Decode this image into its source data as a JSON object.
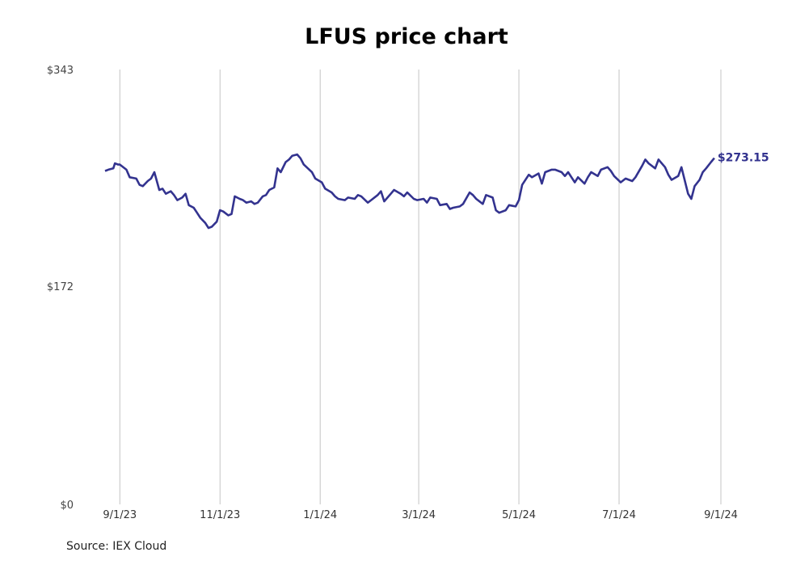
{
  "chart_data": {
    "type": "line",
    "title": "LFUS price chart",
    "source": "Source: IEX Cloud",
    "y_tick_labels": [
      "$343",
      "$172",
      "$0"
    ],
    "y_ticks": [
      343,
      172,
      0
    ],
    "ylim": [
      0,
      343
    ],
    "x_tick_labels": [
      "9/1/23",
      "11/1/23",
      "1/1/24",
      "3/1/24",
      "5/1/24",
      "7/1/24",
      "9/1/24"
    ],
    "x_ticks": [
      "2023-09-01",
      "2023-11-01",
      "2024-01-01",
      "2024-03-01",
      "2024-05-01",
      "2024-07-01",
      "2024-09-01"
    ],
    "xlim": [
      "2023-08-23",
      "2024-09-01"
    ],
    "grid": "vertical",
    "line_color": "#33338f",
    "last_value_label": "$273.15",
    "series": [
      {
        "values": [
          [
            "2023-08-23",
            263
          ],
          [
            "2023-08-25",
            264
          ],
          [
            "2023-08-28",
            265
          ],
          [
            "2023-08-29",
            269
          ],
          [
            "2023-08-31",
            268
          ],
          [
            "2023-09-01",
            268
          ],
          [
            "2023-09-05",
            264
          ],
          [
            "2023-09-07",
            258
          ],
          [
            "2023-09-11",
            257
          ],
          [
            "2023-09-13",
            252
          ],
          [
            "2023-09-15",
            251
          ],
          [
            "2023-09-18",
            255
          ],
          [
            "2023-09-20",
            257
          ],
          [
            "2023-09-22",
            262
          ],
          [
            "2023-09-25",
            248
          ],
          [
            "2023-09-27",
            249
          ],
          [
            "2023-09-29",
            245
          ],
          [
            "2023-10-02",
            247
          ],
          [
            "2023-10-04",
            244
          ],
          [
            "2023-10-06",
            240
          ],
          [
            "2023-10-09",
            242
          ],
          [
            "2023-10-11",
            245
          ],
          [
            "2023-10-13",
            236
          ],
          [
            "2023-10-16",
            234
          ],
          [
            "2023-10-18",
            230
          ],
          [
            "2023-10-20",
            226
          ],
          [
            "2023-10-23",
            222
          ],
          [
            "2023-10-25",
            218
          ],
          [
            "2023-10-27",
            219
          ],
          [
            "2023-10-30",
            223
          ],
          [
            "2023-11-01",
            232
          ],
          [
            "2023-11-03",
            231
          ],
          [
            "2023-11-06",
            228
          ],
          [
            "2023-11-08",
            229
          ],
          [
            "2023-11-10",
            243
          ],
          [
            "2023-11-13",
            241
          ],
          [
            "2023-11-15",
            240
          ],
          [
            "2023-11-17",
            238
          ],
          [
            "2023-11-20",
            239
          ],
          [
            "2023-11-22",
            237
          ],
          [
            "2023-11-24",
            238
          ],
          [
            "2023-11-27",
            243
          ],
          [
            "2023-11-29",
            244
          ],
          [
            "2023-12-01",
            248
          ],
          [
            "2023-12-04",
            250
          ],
          [
            "2023-12-06",
            265
          ],
          [
            "2023-12-08",
            262
          ],
          [
            "2023-12-11",
            270
          ],
          [
            "2023-12-13",
            272
          ],
          [
            "2023-12-15",
            275
          ],
          [
            "2023-12-18",
            276
          ],
          [
            "2023-12-20",
            273
          ],
          [
            "2023-12-22",
            268
          ],
          [
            "2023-12-27",
            262
          ],
          [
            "2023-12-29",
            257
          ],
          [
            "2024-01-02",
            254
          ],
          [
            "2024-01-04",
            249
          ],
          [
            "2024-01-08",
            246
          ],
          [
            "2024-01-10",
            243
          ],
          [
            "2024-01-12",
            241
          ],
          [
            "2024-01-16",
            240
          ],
          [
            "2024-01-18",
            242
          ],
          [
            "2024-01-22",
            241
          ],
          [
            "2024-01-24",
            244
          ],
          [
            "2024-01-26",
            243
          ],
          [
            "2024-01-30",
            238
          ],
          [
            "2024-02-01",
            240
          ],
          [
            "2024-02-05",
            244
          ],
          [
            "2024-02-07",
            247
          ],
          [
            "2024-02-09",
            239
          ],
          [
            "2024-02-13",
            245
          ],
          [
            "2024-02-15",
            248
          ],
          [
            "2024-02-19",
            245
          ],
          [
            "2024-02-21",
            243
          ],
          [
            "2024-02-23",
            246
          ],
          [
            "2024-02-27",
            241
          ],
          [
            "2024-02-29",
            240
          ],
          [
            "2024-03-04",
            241
          ],
          [
            "2024-03-06",
            238
          ],
          [
            "2024-03-08",
            242
          ],
          [
            "2024-03-12",
            241
          ],
          [
            "2024-03-14",
            236
          ],
          [
            "2024-03-18",
            237
          ],
          [
            "2024-03-20",
            233
          ],
          [
            "2024-03-22",
            234
          ],
          [
            "2024-03-26",
            235
          ],
          [
            "2024-03-28",
            237
          ],
          [
            "2024-04-01",
            246
          ],
          [
            "2024-04-03",
            244
          ],
          [
            "2024-04-05",
            241
          ],
          [
            "2024-04-09",
            237
          ],
          [
            "2024-04-11",
            244
          ],
          [
            "2024-04-15",
            242
          ],
          [
            "2024-04-17",
            232
          ],
          [
            "2024-04-19",
            230
          ],
          [
            "2024-04-23",
            232
          ],
          [
            "2024-04-25",
            236
          ],
          [
            "2024-04-29",
            235
          ],
          [
            "2024-05-01",
            240
          ],
          [
            "2024-05-03",
            252
          ],
          [
            "2024-05-07",
            260
          ],
          [
            "2024-05-09",
            258
          ],
          [
            "2024-05-13",
            261
          ],
          [
            "2024-05-15",
            253
          ],
          [
            "2024-05-17",
            262
          ],
          [
            "2024-05-21",
            264
          ],
          [
            "2024-05-23",
            264
          ],
          [
            "2024-05-27",
            262
          ],
          [
            "2024-05-29",
            259
          ],
          [
            "2024-05-31",
            262
          ],
          [
            "2024-06-04",
            254
          ],
          [
            "2024-06-06",
            258
          ],
          [
            "2024-06-10",
            253
          ],
          [
            "2024-06-12",
            258
          ],
          [
            "2024-06-14",
            262
          ],
          [
            "2024-06-18",
            259
          ],
          [
            "2024-06-20",
            264
          ],
          [
            "2024-06-24",
            266
          ],
          [
            "2024-06-26",
            263
          ],
          [
            "2024-06-28",
            259
          ],
          [
            "2024-07-02",
            254
          ],
          [
            "2024-07-05",
            257
          ],
          [
            "2024-07-09",
            255
          ],
          [
            "2024-07-11",
            258
          ],
          [
            "2024-07-15",
            267
          ],
          [
            "2024-07-17",
            272
          ],
          [
            "2024-07-19",
            269
          ],
          [
            "2024-07-23",
            265
          ],
          [
            "2024-07-25",
            272
          ],
          [
            "2024-07-29",
            266
          ],
          [
            "2024-07-31",
            260
          ],
          [
            "2024-08-02",
            256
          ],
          [
            "2024-08-06",
            259
          ],
          [
            "2024-08-08",
            266
          ],
          [
            "2024-08-12",
            245
          ],
          [
            "2024-08-14",
            241
          ],
          [
            "2024-08-16",
            251
          ],
          [
            "2024-08-19",
            256
          ],
          [
            "2024-08-21",
            262
          ],
          [
            "2024-08-23",
            265
          ],
          [
            "2024-08-26",
            270
          ],
          [
            "2024-08-28",
            273.15
          ]
        ]
      }
    ]
  }
}
